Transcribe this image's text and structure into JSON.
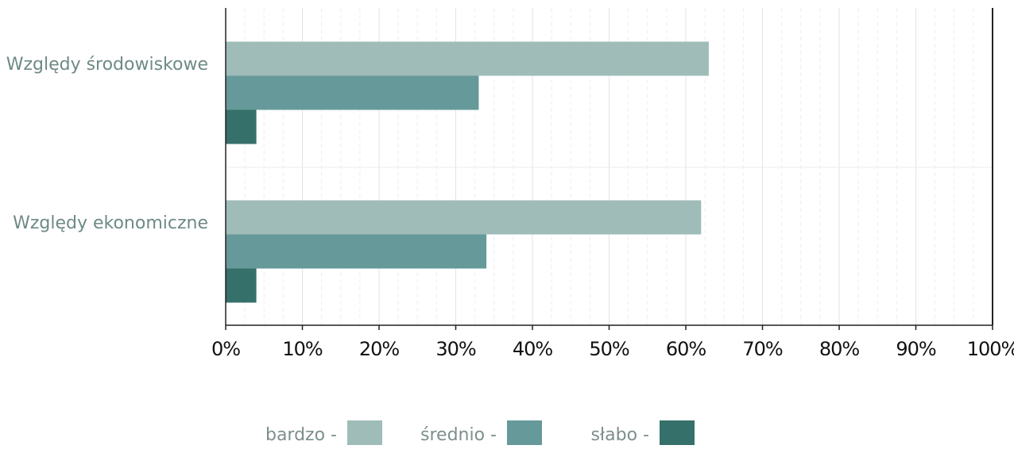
{
  "chart_data": {
    "type": "bar",
    "orientation": "horizontal",
    "categories": [
      "Względy środowiskowe",
      "Względy ekonomiczne"
    ],
    "series": [
      {
        "name": "bardzo",
        "values": [
          63,
          62
        ],
        "color": "#9fbcb9"
      },
      {
        "name": "średnio",
        "values": [
          33,
          34
        ],
        "color": "#66999a"
      },
      {
        "name": "słabo",
        "values": [
          4,
          4
        ],
        "color": "#36706a"
      }
    ],
    "x_ticks": [
      "0%",
      "10%",
      "20%",
      "30%",
      "40%",
      "50%",
      "60%",
      "70%",
      "80%",
      "90%",
      "100%"
    ],
    "xlim": [
      0,
      100
    ],
    "grid": true,
    "legend": {
      "position": "bottom",
      "entries": [
        "bardzo -",
        "średnio -",
        "słabo -"
      ]
    },
    "colors": {
      "category_label": "#6e8a86",
      "tick_label": "#111111",
      "legend_label": "#7d8f8c",
      "axis": "#222222",
      "grid_major": "#e3e3e3",
      "grid_minor": "#eeeeee"
    }
  }
}
